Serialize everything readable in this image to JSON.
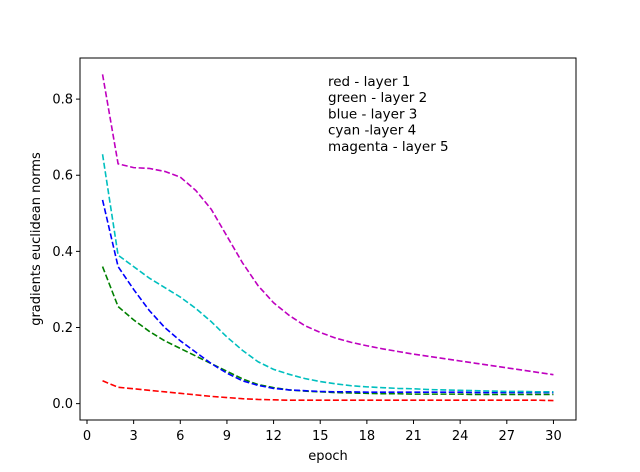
{
  "chart_data": {
    "type": "line",
    "xlabel": "epoch",
    "ylabel": "gradients euclidean norms",
    "xlim": [
      -0.45,
      31.45
    ],
    "ylim": [
      -0.043,
      0.908
    ],
    "xticks": [
      0,
      3,
      6,
      9,
      12,
      15,
      18,
      21,
      24,
      27,
      30
    ],
    "yticks": [
      0.0,
      0.2,
      0.4,
      0.6,
      0.8
    ],
    "ytick_labels": [
      "0.0",
      "0.2",
      "0.4",
      "0.6",
      "0.8"
    ],
    "grid": false,
    "line_style": "dashed",
    "annotation_lines": [
      "red - layer 1",
      "green - layer 2",
      "blue - layer 3",
      "cyan -layer 4",
      "magenta - layer 5"
    ],
    "x": [
      1,
      2,
      3,
      4,
      5,
      6,
      7,
      8,
      9,
      10,
      11,
      12,
      13,
      14,
      15,
      16,
      17,
      18,
      19,
      20,
      21,
      22,
      23,
      24,
      25,
      26,
      27,
      28,
      29,
      30
    ],
    "series": [
      {
        "color": "#ff0000",
        "values": [
          0.06,
          0.043,
          0.039,
          0.035,
          0.031,
          0.027,
          0.023,
          0.019,
          0.016,
          0.013,
          0.011,
          0.01,
          0.009,
          0.009,
          0.009,
          0.009,
          0.009,
          0.009,
          0.009,
          0.009,
          0.009,
          0.009,
          0.009,
          0.009,
          0.009,
          0.009,
          0.009,
          0.009,
          0.009,
          0.008
        ]
      },
      {
        "color": "#008000",
        "values": [
          0.36,
          0.255,
          0.22,
          0.19,
          0.165,
          0.145,
          0.125,
          0.105,
          0.085,
          0.065,
          0.05,
          0.042,
          0.036,
          0.033,
          0.031,
          0.029,
          0.028,
          0.027,
          0.026,
          0.026,
          0.025,
          0.025,
          0.025,
          0.025,
          0.024,
          0.024,
          0.024,
          0.024,
          0.024,
          0.024
        ]
      },
      {
        "color": "#0000ff",
        "values": [
          0.535,
          0.36,
          0.3,
          0.245,
          0.2,
          0.165,
          0.135,
          0.105,
          0.08,
          0.06,
          0.048,
          0.04,
          0.036,
          0.034,
          0.032,
          0.031,
          0.031,
          0.03,
          0.03,
          0.03,
          0.03,
          0.03,
          0.03,
          0.03,
          0.029,
          0.029,
          0.029,
          0.029,
          0.029,
          0.029
        ]
      },
      {
        "color": "#00bfbf",
        "values": [
          0.655,
          0.39,
          0.36,
          0.33,
          0.305,
          0.28,
          0.25,
          0.215,
          0.175,
          0.14,
          0.11,
          0.09,
          0.077,
          0.066,
          0.058,
          0.052,
          0.047,
          0.044,
          0.042,
          0.04,
          0.039,
          0.037,
          0.036,
          0.035,
          0.034,
          0.033,
          0.032,
          0.032,
          0.031,
          0.031
        ]
      },
      {
        "color": "#bf00bf",
        "values": [
          0.865,
          0.63,
          0.62,
          0.618,
          0.61,
          0.595,
          0.56,
          0.51,
          0.44,
          0.37,
          0.31,
          0.265,
          0.232,
          0.205,
          0.187,
          0.172,
          0.161,
          0.152,
          0.144,
          0.137,
          0.13,
          0.124,
          0.118,
          0.112,
          0.106,
          0.1,
          0.094,
          0.088,
          0.082,
          0.076
        ]
      }
    ]
  }
}
